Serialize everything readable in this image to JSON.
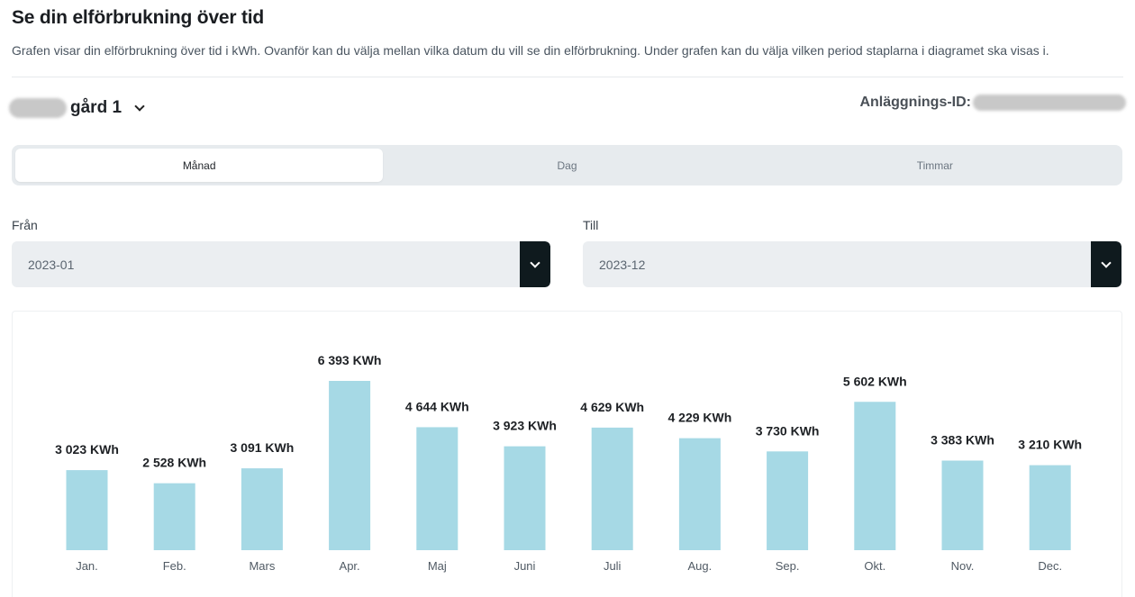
{
  "header": {
    "title": "Se din elförbrukning över tid",
    "description": "Grafen visar din elförbrukning över tid i kWh. Ovanför kan du välja mellan vilka datum du vill se din elförbrukning. Under grafen kan du välja vilken period staplarna i diagramet ska visas i."
  },
  "site": {
    "name": "gård 1",
    "facility_label": "Anläggnings-ID:"
  },
  "tabs": [
    {
      "label": "Månad",
      "active": true
    },
    {
      "label": "Dag",
      "active": false
    },
    {
      "label": "Timmar",
      "active": false
    }
  ],
  "range": {
    "from_label": "Från",
    "from_value": "2023-01",
    "to_label": "Till",
    "to_value": "2023-12"
  },
  "colors": {
    "bar": "#a6d9e5",
    "button_dark": "#0f1a1e"
  },
  "chart_data": {
    "type": "bar",
    "categories": [
      "Jan.",
      "Feb.",
      "Mars",
      "Apr.",
      "Maj",
      "Juni",
      "Juli",
      "Aug.",
      "Sep.",
      "Okt.",
      "Nov.",
      "Dec."
    ],
    "values": [
      3023,
      2528,
      3091,
      6393,
      4644,
      3923,
      4629,
      4229,
      3730,
      5602,
      3383,
      3210
    ],
    "value_labels": [
      "3 023 KWh",
      "2 528 KWh",
      "3 091 KWh",
      "6 393 KWh",
      "4 644 KWh",
      "3 923 KWh",
      "4 629 KWh",
      "4 229 KWh",
      "3 730 KWh",
      "5 602 KWh",
      "3 383 KWh",
      "3 210 KWh"
    ],
    "unit": "KWh",
    "grid": false,
    "ylim": [
      0,
      6393
    ]
  }
}
